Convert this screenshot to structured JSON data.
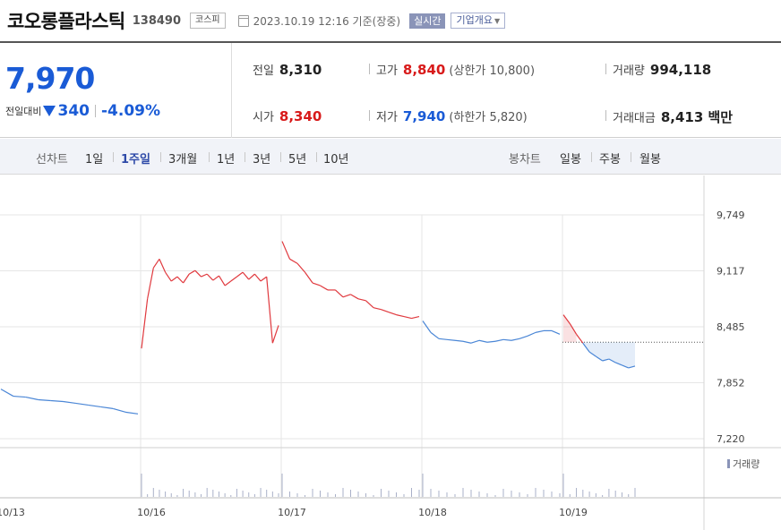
{
  "header": {
    "company": "코오롱플라스틱",
    "code": "138490",
    "market": "코스피",
    "datetime": "2023.10.19 12:16 기준(장중)",
    "realtime": "실시간",
    "overview": "기업개요"
  },
  "summary": {
    "price": "7,970",
    "change_label": "전일대비",
    "change": "340",
    "change_rate": "-4.09%",
    "prev_label": "전일",
    "prev": "8,310",
    "high_label": "고가",
    "high": "8,840",
    "upper_limit": "(상한가 10,800)",
    "volume_label": "거래량",
    "volume": "994,118",
    "open_label": "시가",
    "open": "8,340",
    "low_label": "저가",
    "low": "7,940",
    "lower_limit": "(하한가 5,820)",
    "amount_label": "거래대금",
    "amount": "8,413 백만"
  },
  "tabs": {
    "line_label": "선차트",
    "line": [
      "1일",
      "1주일",
      "3개월",
      "1년",
      "3년",
      "5년",
      "10년"
    ],
    "active": "1주일",
    "candle_label": "봉차트",
    "candle": [
      "일봉",
      "주봉",
      "월봉"
    ]
  },
  "colors": {
    "up": "#e0393e",
    "down": "#4a86d6",
    "accent": "#1a5bd6"
  },
  "chart_data": {
    "type": "line",
    "prev_close": 8310,
    "y_ticks": [
      "9,749",
      "9,117",
      "8,485",
      "7,852",
      "7,220"
    ],
    "x_labels": [
      "10/13",
      "10/16",
      "10/17",
      "10/18",
      "10/19"
    ],
    "volume_legend": "거래량",
    "ylim": [
      7220,
      9749
    ],
    "days": [
      {
        "label": "10/13",
        "prices": [
          7780,
          7700,
          7690,
          7660,
          7650,
          7640,
          7620,
          7600,
          7580,
          7560,
          7520,
          7500
        ]
      },
      {
        "label": "10/16",
        "prices": [
          8240,
          8800,
          9150,
          9250,
          9100,
          9000,
          9050,
          8980,
          9080,
          9120,
          9050,
          9080,
          9010,
          9060,
          8950,
          9000,
          9050,
          9100,
          9020,
          9080,
          9000,
          9050,
          8300,
          8500
        ]
      },
      {
        "label": "10/17",
        "prices": [
          9450,
          9250,
          9200,
          9100,
          8980,
          8950,
          8900,
          8900,
          8820,
          8850,
          8800,
          8780,
          8700,
          8680,
          8650,
          8620,
          8600,
          8580,
          8600
        ]
      },
      {
        "label": "10/18",
        "prices": [
          8550,
          8420,
          8350,
          8340,
          8330,
          8320,
          8300,
          8330,
          8310,
          8320,
          8340,
          8330,
          8350,
          8380,
          8420,
          8440,
          8440,
          8400
        ]
      },
      {
        "label": "10/19",
        "prices": [
          8620,
          8520,
          8400,
          8300,
          8200,
          8150,
          8100,
          8120,
          8080,
          8050,
          8020,
          8040
        ]
      }
    ]
  }
}
